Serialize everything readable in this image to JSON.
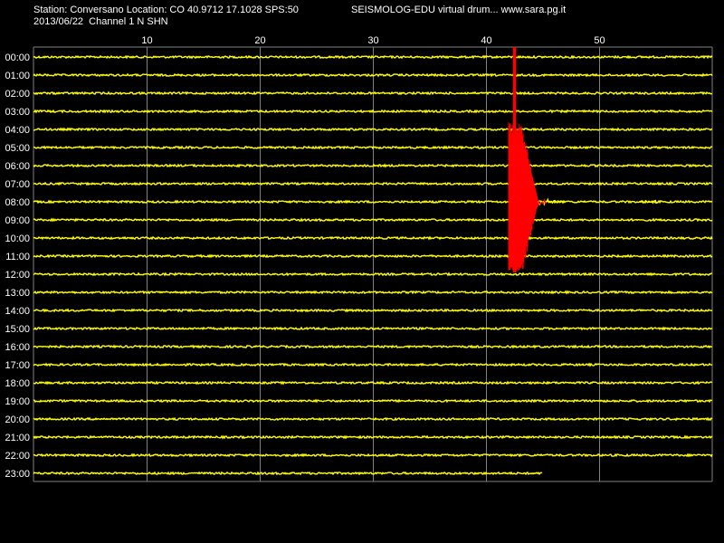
{
  "header": {
    "station_line": "Station: Conversano Location: CO 40.9712 17.1028 SPS:50",
    "app_line": "SEISMOLOG-EDU virtual drum... www.sara.pg.it",
    "date_line": "2013/06/22  Channel 1 N SHN"
  },
  "colors": {
    "background": "#000000",
    "trace": "#ffff00",
    "event": "#ff0000",
    "grid": "#808080",
    "text": "#ffffff"
  },
  "chart_data": {
    "type": "line",
    "title": "",
    "xlabel": "",
    "ylabel": "",
    "x_unit": "minutes",
    "xlim": [
      0,
      60
    ],
    "x_ticks": [
      10,
      20,
      30,
      40,
      50
    ],
    "x_tick_labels": [
      "10",
      "20",
      "30",
      "40",
      "50"
    ],
    "rows": [
      "00:00",
      "01:00",
      "02:00",
      "03:00",
      "04:00",
      "05:00",
      "06:00",
      "07:00",
      "08:00",
      "09:00",
      "10:00",
      "11:00",
      "12:00",
      "13:00",
      "14:00",
      "15:00",
      "16:00",
      "17:00",
      "18:00",
      "19:00",
      "20:00",
      "21:00",
      "22:00",
      "23:00"
    ],
    "last_row_end_minute": 45,
    "event": {
      "color": "red",
      "start_minute": 42,
      "peak_minute": 42.5,
      "first_row": "00:00",
      "last_row": "12:00",
      "coda_row": "08:00",
      "coda_end_minute": 47
    },
    "grid": true
  }
}
